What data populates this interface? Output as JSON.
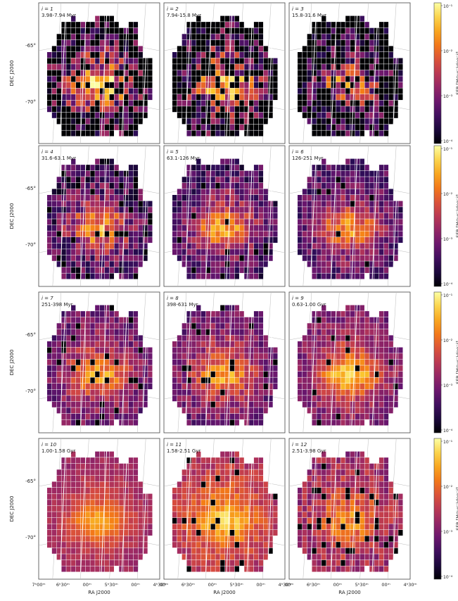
{
  "figure": {
    "ylabel": "DEC J2000",
    "xlabel": "RA J2000",
    "colorbar_label": "SFR [M⊙yr⁻¹deg⁻²]",
    "colorbar_ticks": [
      "10⁻¹",
      "10⁻²",
      "10⁻³",
      "10⁻⁴"
    ],
    "dec_ticks": [
      "-65°",
      "-70°"
    ],
    "ra_ticks_first": [
      "7ʰ00ᵐ",
      "6ʰ30ᵐ",
      "00ᵐ",
      "5ʰ30ᵐ",
      "00ᵐ",
      "4ʰ30ᵐ"
    ],
    "ra_ticks_other": [
      "00ᵐ",
      "6ʰ30ᵐ",
      "00ᵐ",
      "5ʰ30ᵐ",
      "00ᵐ",
      "4ʰ30ᵐ"
    ],
    "colormap": [
      "#000004",
      "#280b54",
      "#65156e",
      "#9f2a63",
      "#d44842",
      "#f57d15",
      "#fac228",
      "#fcffa4"
    ]
  },
  "panels": [
    {
      "i": "i = 1",
      "age": "3.98-7.94 Myr"
    },
    {
      "i": "i = 2",
      "age": "7.94-15.8 Myr"
    },
    {
      "i": "i = 3",
      "age": "15.8-31.6 Myr"
    },
    {
      "i": "i = 4",
      "age": "31.6-63.1 Myr"
    },
    {
      "i": "i = 5",
      "age": "63.1-126 Myr"
    },
    {
      "i": "i = 6",
      "age": "126-251 Myr"
    },
    {
      "i": "i = 7",
      "age": "251-398 Myr"
    },
    {
      "i": "i = 8",
      "age": "398-631 Myr"
    },
    {
      "i": "i = 9",
      "age": "0.63-1.00 Gyr"
    },
    {
      "i": "i = 10",
      "age": "1.00-1.58 Gyr"
    },
    {
      "i": "i = 11",
      "age": "1.58-2.51 Gyr"
    },
    {
      "i": "i = 12",
      "age": "2.51-3.98 Gyr"
    }
  ],
  "chart_data": {
    "type": "heatmap",
    "description_units": "log10 SFR per cell, colorbar range 1e-4 to 1e-1",
    "x_axis": "RA J2000",
    "y_axis": "DEC J2000",
    "color_scale": "log",
    "zlim": [
      0.0001,
      0.1
    ],
    "panels": [
      {
        "index": 1,
        "age_range": "3.98-7.94 Myr",
        "peak_log_sfr": -1.3,
        "background_log_sfr": -3.8,
        "noise": 0.9,
        "holes": 0.25
      },
      {
        "index": 2,
        "age_range": "7.94-15.8 Myr",
        "peak_log_sfr": -1.4,
        "background_log_sfr": -3.8,
        "noise": 0.9,
        "holes": 0.28
      },
      {
        "index": 3,
        "age_range": "15.8-31.6 Myr",
        "peak_log_sfr": -1.9,
        "background_log_sfr": -3.9,
        "noise": 0.8,
        "holes": 0.35
      },
      {
        "index": 4,
        "age_range": "31.6-63.1 Myr",
        "peak_log_sfr": -1.7,
        "background_log_sfr": -3.6,
        "noise": 0.6,
        "holes": 0.06
      },
      {
        "index": 5,
        "age_range": "63.1-126 Myr",
        "peak_log_sfr": -1.6,
        "background_log_sfr": -3.5,
        "noise": 0.45,
        "holes": 0.03
      },
      {
        "index": 6,
        "age_range": "126-251 Myr",
        "peak_log_sfr": -1.7,
        "background_log_sfr": -3.4,
        "noise": 0.4,
        "holes": 0.02
      },
      {
        "index": 7,
        "age_range": "251-398 Myr",
        "peak_log_sfr": -1.6,
        "background_log_sfr": -3.2,
        "noise": 0.35,
        "holes": 0.04
      },
      {
        "index": 8,
        "age_range": "398-631 Myr",
        "peak_log_sfr": -1.6,
        "background_log_sfr": -3.2,
        "noise": 0.35,
        "holes": 0.04
      },
      {
        "index": 9,
        "age_range": "0.63-1.00 Gyr",
        "peak_log_sfr": -1.3,
        "background_log_sfr": -3.1,
        "noise": 0.3,
        "holes": 0.03
      },
      {
        "index": 10,
        "age_range": "1.00-1.58 Gyr",
        "peak_log_sfr": -1.6,
        "background_log_sfr": -2.8,
        "noise": 0.15,
        "holes": 0.0
      },
      {
        "index": 11,
        "age_range": "1.58-2.51 Gyr",
        "peak_log_sfr": -1.3,
        "background_log_sfr": -2.6,
        "noise": 0.25,
        "holes": 0.04
      },
      {
        "index": 12,
        "age_range": "2.51-3.98 Gyr",
        "peak_log_sfr": -1.7,
        "background_log_sfr": -2.8,
        "noise": 0.35,
        "holes": 0.08
      }
    ]
  }
}
